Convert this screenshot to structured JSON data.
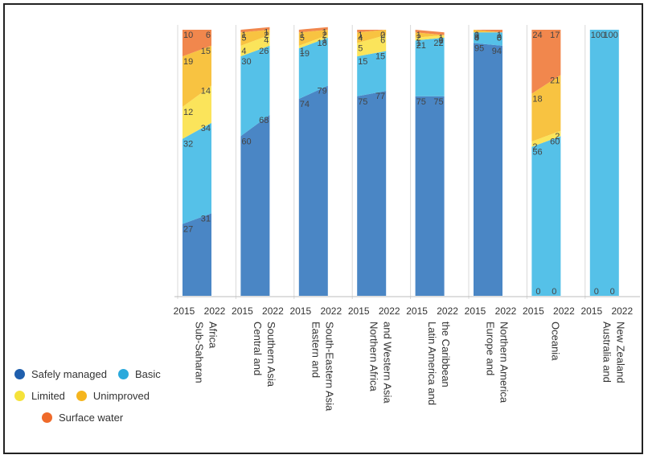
{
  "chart_data": {
    "type": "bar",
    "stacked": true,
    "years": [
      "2015",
      "2022"
    ],
    "groups": [
      "Sub-Saharan Africa",
      "Central and Southern Asia",
      "Eastern and South-Eastern Asia",
      "Northern Africa and Western Asia",
      "Latin America and the Caribbean",
      "Europe and Northern America",
      "Oceania",
      "Australia and New Zealand"
    ],
    "group_label_lines": [
      [
        "Sub-Saharan",
        "Africa"
      ],
      [
        "Central and",
        "Southern Asia"
      ],
      [
        "Eastern and",
        "South-Eastern Asia"
      ],
      [
        "Northern Africa",
        "and Western Asia"
      ],
      [
        "Latin America and",
        "the Caribbean"
      ],
      [
        "Europe and",
        "Northern America"
      ],
      [
        "Oceania"
      ],
      [
        "Australia and",
        "New Zealand"
      ]
    ],
    "series": [
      {
        "name": "Safely managed",
        "color": "#4a86c5",
        "values": [
          [
            27,
            31
          ],
          [
            60,
            68
          ],
          [
            74,
            79
          ],
          [
            75,
            77
          ],
          [
            75,
            75
          ],
          [
            95,
            94
          ],
          [
            0,
            0
          ],
          [
            0,
            0
          ]
        ]
      },
      {
        "name": "Basic",
        "color": "#55c1e8",
        "values": [
          [
            32,
            34
          ],
          [
            30,
            26
          ],
          [
            19,
            18
          ],
          [
            15,
            15
          ],
          [
            21,
            22
          ],
          [
            4,
            5
          ],
          [
            56,
            60
          ],
          [
            100,
            100
          ]
        ]
      },
      {
        "name": "Limited",
        "color": "#fbe45b",
        "values": [
          [
            12,
            14
          ],
          [
            4,
            4
          ],
          [
            1,
            1
          ],
          [
            5,
            6
          ],
          [
            1,
            1
          ],
          [
            0,
            0
          ],
          [
            2,
            2
          ],
          [
            0,
            0
          ]
        ]
      },
      {
        "name": "Unimproved",
        "color": "#f8c341",
        "values": [
          [
            19,
            15
          ],
          [
            5,
            2
          ],
          [
            5,
            2
          ],
          [
            4,
            2
          ],
          [
            2,
            0
          ],
          [
            1,
            0
          ],
          [
            18,
            21
          ],
          [
            0,
            0
          ]
        ]
      },
      {
        "name": "Surface water",
        "color": "#f1874d",
        "values": [
          [
            10,
            6
          ],
          [
            1,
            1
          ],
          [
            1,
            1
          ],
          [
            1,
            0
          ],
          [
            1,
            1
          ],
          [
            0,
            1
          ],
          [
            24,
            17
          ],
          [
            0,
            0
          ]
        ]
      }
    ],
    "ylim": [
      0,
      100
    ]
  },
  "legend": {
    "rows": [
      [
        {
          "label": "Safely managed",
          "color": "#1f5fad"
        },
        {
          "label": "Basic",
          "color": "#2aa9dc"
        }
      ],
      [
        {
          "label": "Limited",
          "color": "#f5e23a"
        },
        {
          "label": "Unimproved",
          "color": "#f5b51e"
        }
      ],
      [
        {
          "label": "Surface water",
          "color": "#ef6a2a"
        }
      ]
    ]
  }
}
